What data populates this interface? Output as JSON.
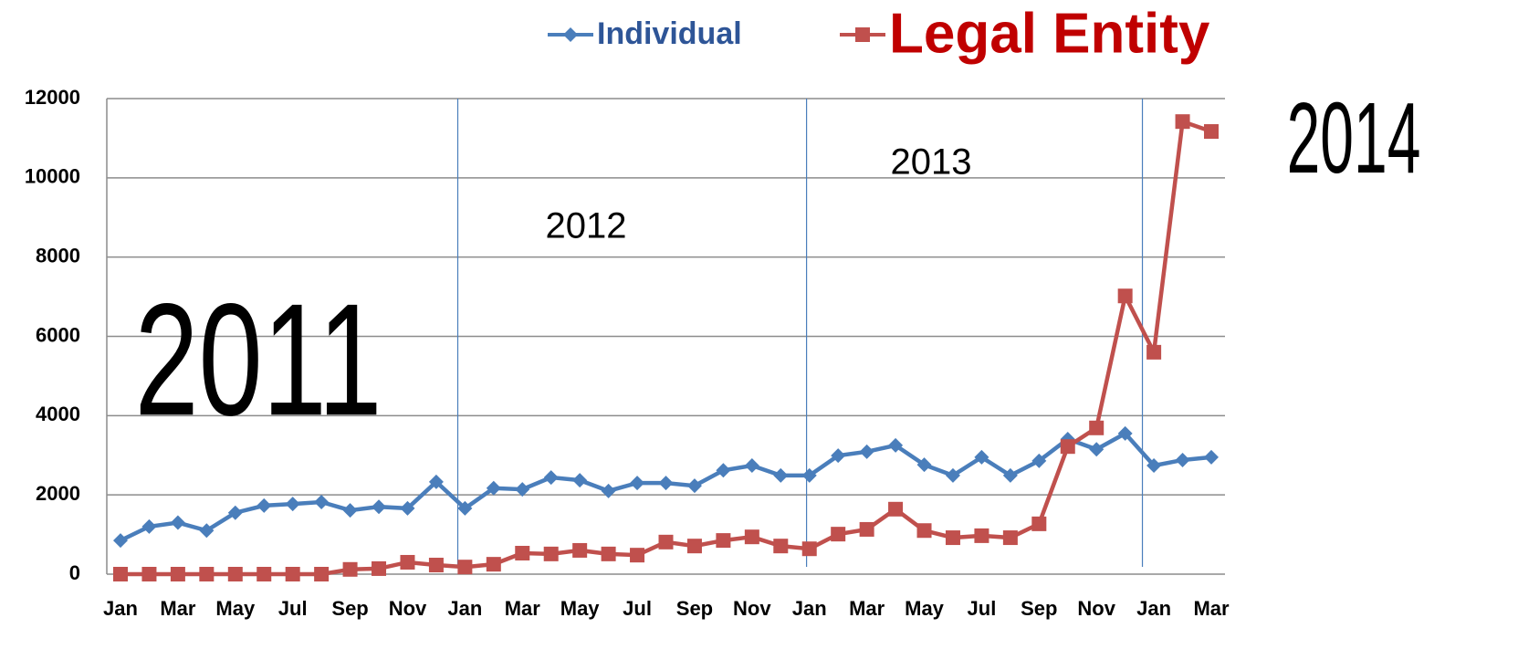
{
  "chart_data": {
    "type": "line",
    "categories": [
      "Jan",
      null,
      "Mar",
      null,
      "May",
      null,
      "Jul",
      null,
      "Sep",
      null,
      "Nov",
      null,
      "Jan",
      null,
      "Mar",
      null,
      "May",
      null,
      "Jul",
      null,
      "Sep",
      null,
      "Nov",
      null,
      "Jan",
      null,
      "Mar",
      null,
      "May",
      null,
      "Jul",
      null,
      "Sep",
      null,
      "Nov",
      null,
      "Jan",
      null,
      "Mar"
    ],
    "series": [
      {
        "name": "Individual",
        "color": "#4a7ebb",
        "marker": "diamond",
        "values": [
          850,
          1200,
          1300,
          1100,
          1550,
          1730,
          1770,
          1820,
          1610,
          1700,
          1660,
          2330,
          1660,
          2170,
          2140,
          2440,
          2370,
          2100,
          2300,
          2300,
          2230,
          2620,
          2740,
          2490,
          2490,
          2990,
          3090,
          3250,
          2760,
          2490,
          2950,
          2490,
          2860,
          3410,
          3150,
          3550,
          2740,
          2880,
          2950
        ]
      },
      {
        "name": "Legal Entity",
        "color": "#c0504d",
        "marker": "square",
        "values": [
          0,
          0,
          0,
          0,
          0,
          0,
          0,
          0,
          120,
          140,
          300,
          230,
          180,
          250,
          530,
          510,
          600,
          510,
          480,
          810,
          710,
          850,
          940,
          710,
          640,
          1010,
          1130,
          1640,
          1100,
          920,
          970,
          920,
          1270,
          3220,
          3690,
          7020,
          5600,
          11420,
          11170
        ]
      }
    ],
    "annotations": [
      "2011",
      "2012",
      "2013",
      "2014"
    ],
    "ylim": [
      0,
      12000
    ],
    "yticks": [
      0,
      2000,
      4000,
      6000,
      8000,
      10000,
      12000
    ],
    "grid": true,
    "legend": "top"
  }
}
